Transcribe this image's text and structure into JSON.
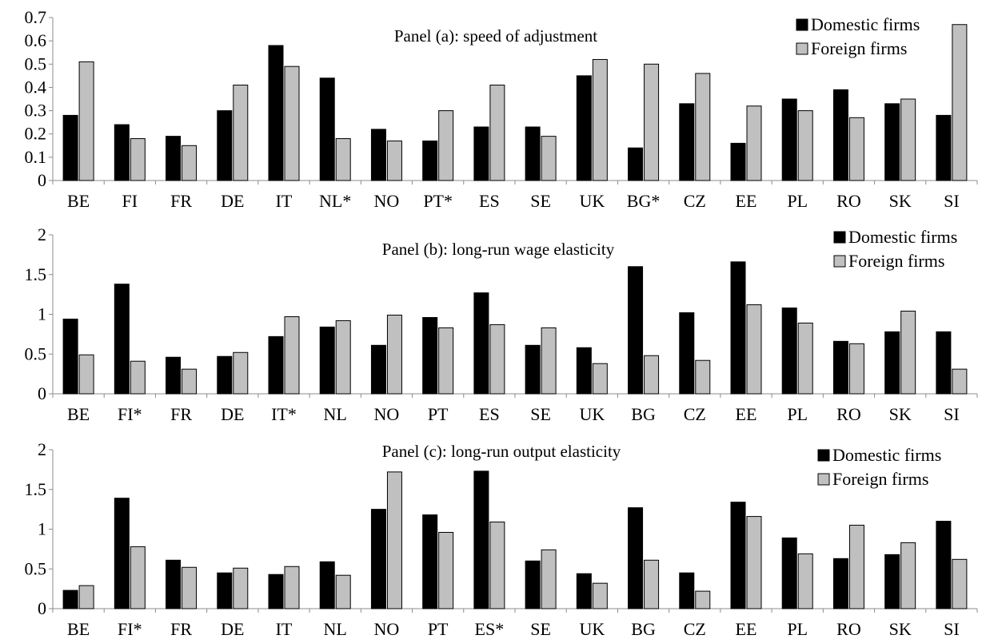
{
  "colors": {
    "domestic": "#000000",
    "foreign": "#c0c0c0",
    "axis": "#8c8c8c"
  },
  "chart_data": [
    {
      "type": "bar",
      "title": "Panel (a): speed of adjustment",
      "categories": [
        "BE",
        "FI",
        "FR",
        "DE",
        "IT",
        "NL*",
        "NO",
        "PT*",
        "ES",
        "SE",
        "UK",
        "BG*",
        "CZ",
        "EE",
        "PL",
        "RO",
        "SK",
        "SI"
      ],
      "series": [
        {
          "name": "Domestic firms",
          "values": [
            0.28,
            0.24,
            0.19,
            0.3,
            0.58,
            0.44,
            0.22,
            0.17,
            0.23,
            0.23,
            0.45,
            0.14,
            0.33,
            0.16,
            0.35,
            0.39,
            0.33,
            0.28
          ]
        },
        {
          "name": "Foreign firms",
          "values": [
            0.51,
            0.18,
            0.15,
            0.41,
            0.49,
            0.18,
            0.17,
            0.3,
            0.41,
            0.19,
            0.52,
            0.5,
            0.46,
            0.32,
            0.3,
            0.27,
            0.35,
            0.67
          ]
        }
      ],
      "ylim": [
        0,
        0.7
      ],
      "yticks": [
        "0",
        "0.1",
        "0.2",
        "0.3",
        "0.4",
        "0.5",
        "0.6",
        "0.7"
      ],
      "legend": "top-right",
      "grid": false
    },
    {
      "type": "bar",
      "title": "Panel (b): long-run wage elasticity",
      "categories": [
        "BE",
        "FI*",
        "FR",
        "DE",
        "IT*",
        "NL",
        "NO",
        "PT",
        "ES",
        "SE",
        "UK",
        "BG",
        "CZ",
        "EE",
        "PL",
        "RO",
        "SK",
        "SI"
      ],
      "series": [
        {
          "name": "Domestic firms",
          "values": [
            0.94,
            1.38,
            0.46,
            0.47,
            0.72,
            0.84,
            0.61,
            0.96,
            1.27,
            0.61,
            0.58,
            1.6,
            1.02,
            1.66,
            1.08,
            0.66,
            0.78,
            0.78
          ]
        },
        {
          "name": "Foreign firms",
          "values": [
            0.49,
            0.41,
            0.31,
            0.52,
            0.97,
            0.92,
            0.99,
            0.83,
            0.87,
            0.83,
            0.38,
            0.48,
            0.42,
            1.12,
            0.89,
            0.63,
            1.04,
            0.31
          ]
        }
      ],
      "ylim": [
        0,
        2
      ],
      "yticks": [
        "0",
        "0.5",
        "1",
        "1.5",
        "2"
      ],
      "legend": "top-right",
      "grid": false
    },
    {
      "type": "bar",
      "title": "Panel (c): long-run output elasticity",
      "categories": [
        "BE",
        "FI*",
        "FR",
        "DE",
        "IT",
        "NL",
        "NO",
        "PT",
        "ES*",
        "SE",
        "UK",
        "BG",
        "CZ",
        "EE",
        "PL",
        "RO",
        "SK",
        "SI"
      ],
      "series": [
        {
          "name": "Domestic firms",
          "values": [
            0.23,
            1.39,
            0.61,
            0.45,
            0.43,
            0.59,
            1.25,
            1.18,
            1.73,
            0.6,
            0.44,
            1.27,
            0.45,
            1.34,
            0.89,
            0.63,
            0.68,
            1.1
          ]
        },
        {
          "name": "Foreign firms",
          "values": [
            0.29,
            0.78,
            0.52,
            0.51,
            0.53,
            0.42,
            1.72,
            0.96,
            1.09,
            0.74,
            0.32,
            0.61,
            0.22,
            1.16,
            0.69,
            1.05,
            0.83,
            0.62
          ]
        }
      ],
      "ylim": [
        0,
        2
      ],
      "yticks": [
        "0",
        "0.5",
        "1",
        "1.5",
        "2"
      ],
      "legend": "top-right",
      "grid": false
    }
  ]
}
